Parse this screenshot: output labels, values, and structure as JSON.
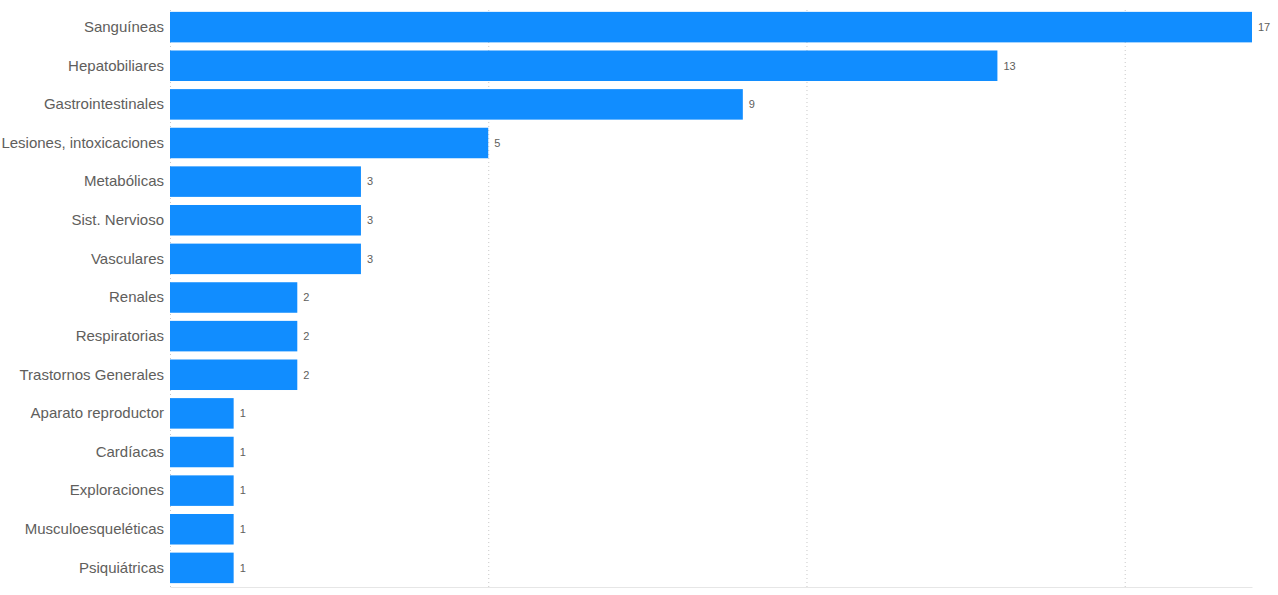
{
  "chart_data": {
    "type": "bar",
    "orientation": "horizontal",
    "categories": [
      "Sanguíneas",
      "Hepatobiliares",
      "Gastrointestinales",
      "Lesiones, intoxicaciones",
      "Metabólicas",
      "Sist. Nervioso",
      "Vasculares",
      "Renales",
      "Respiratorias",
      "Trastornos Generales",
      "Aparato reproductor",
      "Cardíacas",
      "Exploraciones",
      "Musculoesqueléticas",
      "Psiquiátricas"
    ],
    "values": [
      17,
      13,
      9,
      5,
      3,
      3,
      3,
      2,
      2,
      2,
      1,
      1,
      1,
      1,
      1
    ],
    "color": "#118DFF",
    "xlim": [
      0,
      17
    ],
    "xticks": [
      0,
      5,
      10,
      15
    ],
    "grid": true,
    "data_labels": true,
    "tick_labels": "y"
  }
}
